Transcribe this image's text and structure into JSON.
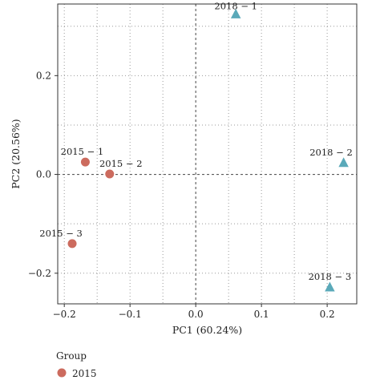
{
  "chart_data": {
    "type": "scatter",
    "xlabel": "PC1 (60.24%)",
    "ylabel": "PC2 (20.56%)",
    "xlim": [
      -0.21,
      0.245
    ],
    "ylim": [
      -0.262,
      0.345
    ],
    "x_ticks": [
      -0.2,
      -0.1,
      0.0,
      0.1,
      0.2
    ],
    "x_tick_labels": [
      "−0.2",
      "−0.1",
      "0.0",
      "0.1",
      "0.2"
    ],
    "y_ticks": [
      -0.2,
      0.0,
      0.2
    ],
    "y_tick_labels": [
      "−0.2",
      "0.0",
      "0.2"
    ],
    "grid": true,
    "grid_style": "dotted",
    "reference_lines": {
      "x": 0.0,
      "y": 0.0
    },
    "legend": {
      "title": "Group",
      "placement": "bottom-left"
    },
    "series": [
      {
        "name": "2015",
        "marker": "circle",
        "color": "#cc6b5e",
        "points": [
          {
            "label": "2015 − 1",
            "x": -0.168,
            "y": 0.025
          },
          {
            "label": "2015 − 2",
            "x": -0.131,
            "y": 0.001
          },
          {
            "label": "2015 − 3",
            "x": -0.188,
            "y": -0.14
          }
        ]
      },
      {
        "name": "",
        "marker": "triangle",
        "color": "#5aa9b9",
        "points": [
          {
            "label": "2018 − 1",
            "x": 0.061,
            "y": 0.325
          },
          {
            "label": "2018 − 2",
            "x": 0.225,
            "y": 0.024
          },
          {
            "label": "2018 − 3",
            "x": 0.204,
            "y": -0.228
          }
        ]
      }
    ]
  }
}
